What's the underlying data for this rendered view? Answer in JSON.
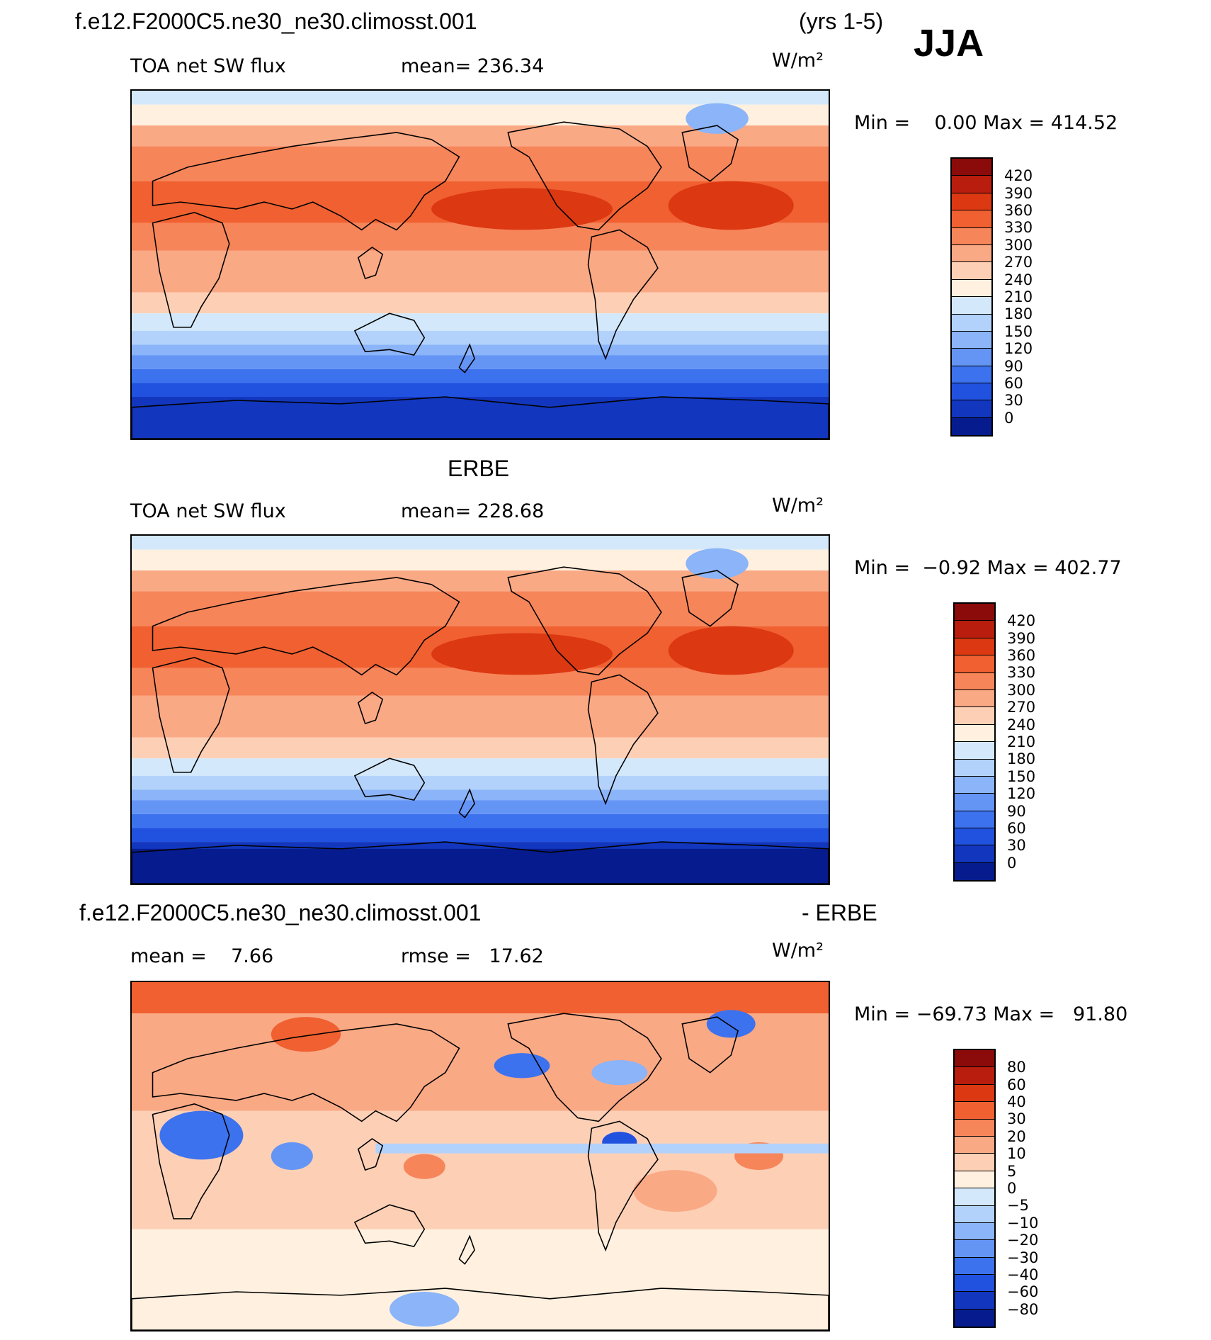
{
  "header": {
    "case_name": "f.e12.F2000C5.ne30_ne30.climosst.001",
    "years": "(yrs 1-5)",
    "season": "JJA"
  },
  "panels": [
    {
      "title": "",
      "variable": "TOA net SW flux",
      "stat_a": "mean= 236.34",
      "stat_b": "",
      "units": "W/m²",
      "minmax": "Min =    0.00 Max = 414.52",
      "colorbar": {
        "colors": [
          "#8b0a0a",
          "#b81d0d",
          "#dc3812",
          "#f06030",
          "#f7855a",
          "#faa985",
          "#fdd0b6",
          "#fff0df",
          "#d3e8fa",
          "#b2d2fb",
          "#8bb4f9",
          "#6495f5",
          "#3d72ee",
          "#2152df",
          "#1236bd",
          "#061c8e"
        ],
        "labels": [
          "420",
          "390",
          "360",
          "330",
          "300",
          "270",
          "240",
          "210",
          "180",
          "150",
          "120",
          "90",
          "60",
          "30",
          "0"
        ]
      }
    },
    {
      "title": "ERBE",
      "variable": "TOA net SW flux",
      "stat_a": "mean= 228.68",
      "stat_b": "",
      "units": "W/m²",
      "minmax": "Min =  −0.92 Max = 402.77",
      "colorbar": {
        "colors": [
          "#8b0a0a",
          "#b81d0d",
          "#dc3812",
          "#f06030",
          "#f7855a",
          "#faa985",
          "#fdd0b6",
          "#fff0df",
          "#d3e8fa",
          "#b2d2fb",
          "#8bb4f9",
          "#6495f5",
          "#3d72ee",
          "#2152df",
          "#1236bd",
          "#061c8e"
        ],
        "labels": [
          "420",
          "390",
          "360",
          "330",
          "300",
          "270",
          "240",
          "210",
          "180",
          "150",
          "120",
          "90",
          "60",
          "30",
          "0"
        ]
      }
    },
    {
      "title": "f.e12.F2000C5.ne30_ne30.climosst.001",
      "title_suffix": "- ERBE",
      "variable": "mean =    7.66",
      "stat_a": "rmse =   17.62",
      "stat_b": "",
      "units": "W/m²",
      "minmax": "Min = −69.73 Max =   91.80",
      "colorbar": {
        "colors": [
          "#8b0a0a",
          "#b81d0d",
          "#dc3812",
          "#f06030",
          "#f7855a",
          "#faa985",
          "#fdd0b6",
          "#fff0df",
          "#d3e8fa",
          "#b2d2fb",
          "#8bb4f9",
          "#6495f5",
          "#3d72ee",
          "#2152df",
          "#1236bd",
          "#061c8e"
        ],
        "labels": [
          "80",
          "60",
          "40",
          "30",
          "20",
          "10",
          "5",
          "0",
          "−5",
          "−10",
          "−20",
          "−30",
          "−40",
          "−60",
          "−80"
        ]
      }
    }
  ]
}
